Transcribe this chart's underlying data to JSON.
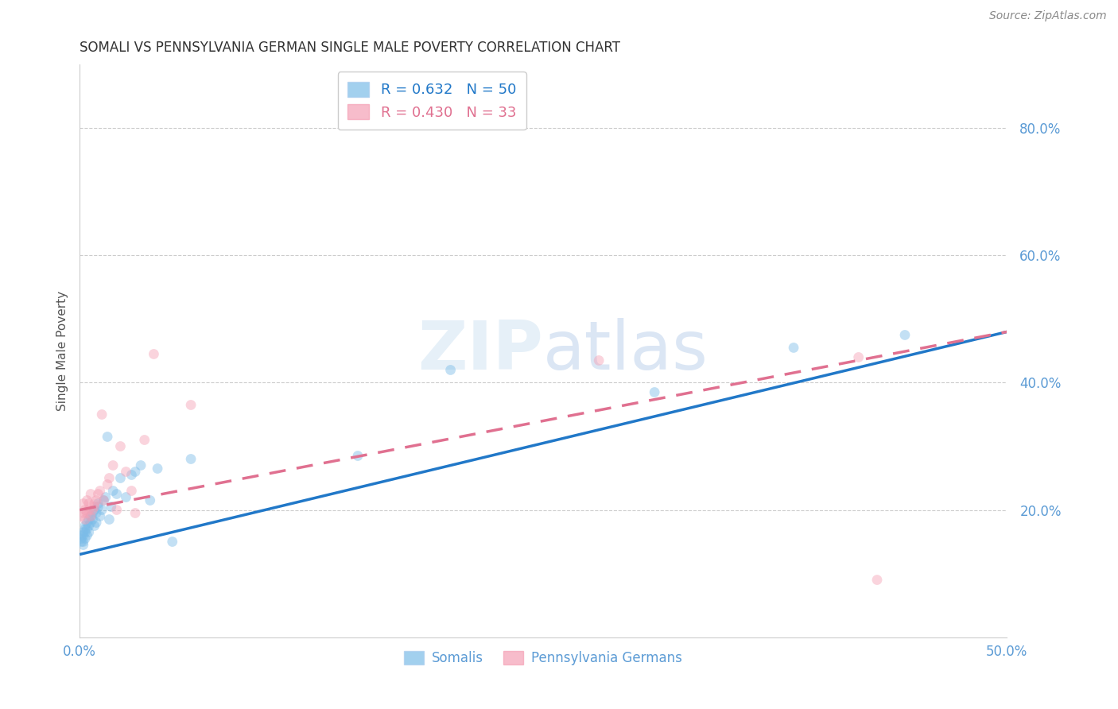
{
  "title": "SOMALI VS PENNSYLVANIA GERMAN SINGLE MALE POVERTY CORRELATION CHART",
  "source": "Source: ZipAtlas.com",
  "ylabel": "Single Male Poverty",
  "right_yticks": [
    "80.0%",
    "60.0%",
    "40.0%",
    "20.0%"
  ],
  "right_ytick_vals": [
    0.8,
    0.6,
    0.4,
    0.2
  ],
  "legend_line1": "R = 0.632   N = 50",
  "legend_line2": "R = 0.430   N = 33",
  "somali_color": "#7bbce8",
  "penn_color": "#f4a0b5",
  "somali_line_color": "#2178c8",
  "penn_line_color": "#e07090",
  "xlim": [
    0.0,
    0.5
  ],
  "ylim": [
    0.0,
    0.9
  ],
  "somali_line_x0": 0.0,
  "somali_line_y0": 0.13,
  "somali_line_x1": 0.5,
  "somali_line_y1": 0.48,
  "penn_line_x0": 0.0,
  "penn_line_y0": 0.2,
  "penn_line_x1": 0.5,
  "penn_line_y1": 0.48,
  "somali_x": [
    0.001,
    0.001,
    0.001,
    0.002,
    0.002,
    0.002,
    0.002,
    0.003,
    0.003,
    0.003,
    0.003,
    0.004,
    0.004,
    0.004,
    0.005,
    0.005,
    0.005,
    0.006,
    0.006,
    0.007,
    0.007,
    0.008,
    0.008,
    0.009,
    0.009,
    0.01,
    0.01,
    0.011,
    0.012,
    0.013,
    0.014,
    0.015,
    0.016,
    0.017,
    0.018,
    0.02,
    0.022,
    0.025,
    0.028,
    0.03,
    0.033,
    0.038,
    0.042,
    0.05,
    0.06,
    0.15,
    0.2,
    0.31,
    0.385,
    0.445
  ],
  "somali_y": [
    0.16,
    0.155,
    0.15,
    0.165,
    0.16,
    0.15,
    0.145,
    0.17,
    0.165,
    0.175,
    0.155,
    0.18,
    0.17,
    0.16,
    0.185,
    0.175,
    0.165,
    0.19,
    0.18,
    0.195,
    0.185,
    0.175,
    0.2,
    0.195,
    0.18,
    0.21,
    0.205,
    0.19,
    0.2,
    0.215,
    0.22,
    0.315,
    0.185,
    0.205,
    0.23,
    0.225,
    0.25,
    0.22,
    0.255,
    0.26,
    0.27,
    0.215,
    0.265,
    0.15,
    0.28,
    0.285,
    0.42,
    0.385,
    0.455,
    0.475
  ],
  "penn_x": [
    0.001,
    0.002,
    0.002,
    0.003,
    0.003,
    0.004,
    0.004,
    0.005,
    0.005,
    0.006,
    0.006,
    0.007,
    0.008,
    0.008,
    0.009,
    0.01,
    0.011,
    0.012,
    0.013,
    0.015,
    0.016,
    0.018,
    0.02,
    0.022,
    0.025,
    0.028,
    0.03,
    0.035,
    0.04,
    0.06,
    0.28,
    0.42,
    0.43
  ],
  "penn_y": [
    0.19,
    0.195,
    0.21,
    0.2,
    0.185,
    0.215,
    0.195,
    0.21,
    0.2,
    0.19,
    0.225,
    0.2,
    0.21,
    0.205,
    0.215,
    0.225,
    0.23,
    0.35,
    0.215,
    0.24,
    0.25,
    0.27,
    0.2,
    0.3,
    0.26,
    0.23,
    0.195,
    0.31,
    0.445,
    0.365,
    0.435,
    0.44,
    0.09
  ],
  "background_color": "#ffffff",
  "grid_color": "#cccccc",
  "title_color": "#333333",
  "right_axis_color": "#5b9bd5",
  "marker_size": 85,
  "marker_alpha": 0.45,
  "line_width": 2.5
}
